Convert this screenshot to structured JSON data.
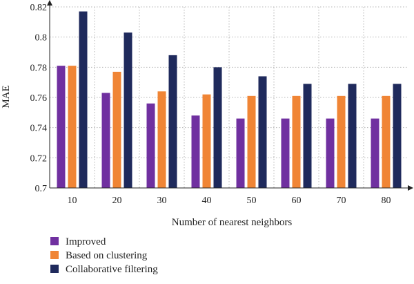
{
  "chart_data": {
    "type": "bar",
    "categories": [
      "10",
      "20",
      "30",
      "40",
      "50",
      "60",
      "70",
      "80"
    ],
    "series": [
      {
        "name": "Improved",
        "color": "#7030a0",
        "values": [
          0.781,
          0.763,
          0.756,
          0.748,
          0.746,
          0.746,
          0.746,
          0.746
        ]
      },
      {
        "name": "Based on clustering",
        "color": "#f08535",
        "values": [
          0.781,
          0.777,
          0.764,
          0.762,
          0.761,
          0.761,
          0.761,
          0.761
        ]
      },
      {
        "name": "Collaborative filtering",
        "color": "#1f2a5c",
        "values": [
          0.817,
          0.803,
          0.788,
          0.78,
          0.774,
          0.769,
          0.769,
          0.769
        ]
      }
    ],
    "xlabel": "Number of nearest neighbors",
    "ylabel": "MAE",
    "ylim": [
      0.7,
      0.82
    ],
    "yticks": [
      "0.7",
      "0.72",
      "0.74",
      "0.76",
      "0.78",
      "0.8",
      "0.82"
    ],
    "grid": true,
    "legend_position": "bottom-left"
  }
}
